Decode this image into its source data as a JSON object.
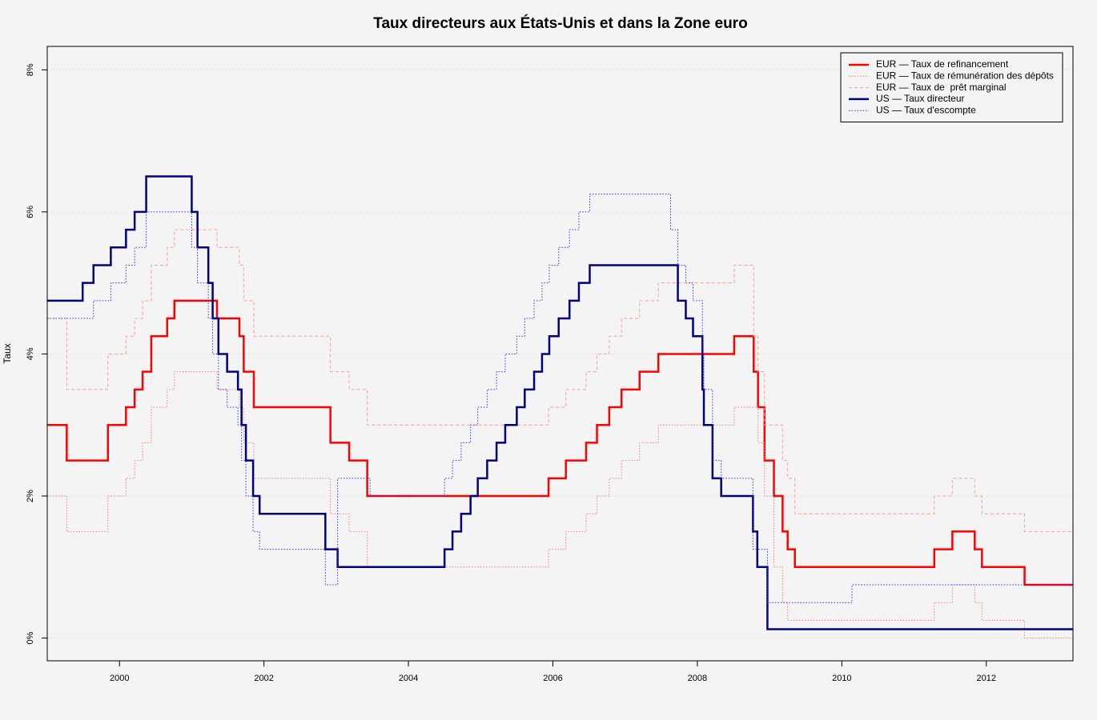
{
  "chart_data": {
    "type": "line",
    "step": "post",
    "title": "Taux directeurs aux États-Unis et dans la Zone euro",
    "ylabel": "Taux",
    "xlim": [
      1999.0,
      2013.2
    ],
    "ylim": [
      -0.32,
      8.33
    ],
    "xticks": [
      2000,
      2002,
      2004,
      2006,
      2008,
      2010,
      2012
    ],
    "yticks": [
      {
        "value": 0,
        "label": "0%"
      },
      {
        "value": 2,
        "label": "2%"
      },
      {
        "value": 4,
        "label": "4%"
      },
      {
        "value": 6,
        "label": "6%"
      },
      {
        "value": 8,
        "label": "8%"
      }
    ],
    "grid": "y",
    "legend": "topright",
    "series": [
      {
        "name": "EUR — Taux de refinancement",
        "color": "#ff0000",
        "linestyle": "solid",
        "linewidth": 2.5,
        "x": [
          1999.0,
          1999.27,
          1999.84,
          2000.09,
          2000.21,
          2000.32,
          2000.44,
          2000.66,
          2000.76,
          2001.35,
          2001.66,
          2001.72,
          2001.86,
          2002.92,
          2003.18,
          2003.43,
          2005.94,
          2006.18,
          2006.46,
          2006.61,
          2006.78,
          2006.95,
          2007.2,
          2007.46,
          2008.51,
          2008.78,
          2008.84,
          2008.93,
          2009.06,
          2009.18,
          2009.25,
          2009.35,
          2011.28,
          2011.53,
          2011.84,
          2011.94,
          2012.53,
          2013.2
        ],
        "values": [
          3.0,
          2.5,
          3.0,
          3.25,
          3.5,
          3.75,
          4.25,
          4.5,
          4.75,
          4.5,
          4.25,
          3.75,
          3.25,
          2.75,
          2.5,
          2.0,
          2.25,
          2.5,
          2.75,
          3.0,
          3.25,
          3.5,
          3.75,
          4.0,
          4.25,
          3.75,
          3.25,
          2.5,
          2.0,
          1.5,
          1.25,
          1.0,
          1.25,
          1.5,
          1.25,
          1.0,
          0.75,
          0.75
        ]
      },
      {
        "name": "EUR — Taux de rémunération des dépôts",
        "color": "#f08070",
        "linestyle": "dotted",
        "linewidth": 1,
        "x": [
          1999.0,
          1999.27,
          1999.84,
          2000.09,
          2000.21,
          2000.32,
          2000.44,
          2000.66,
          2000.76,
          2001.35,
          2001.66,
          2001.72,
          2001.86,
          2002.92,
          2003.18,
          2003.43,
          2005.94,
          2006.18,
          2006.46,
          2006.61,
          2006.78,
          2006.95,
          2007.2,
          2007.46,
          2008.51,
          2008.78,
          2008.84,
          2008.93,
          2009.06,
          2009.18,
          2009.25,
          2009.35,
          2011.28,
          2011.53,
          2011.84,
          2011.94,
          2012.53,
          2013.2
        ],
        "values": [
          2.0,
          1.5,
          2.0,
          2.25,
          2.5,
          2.75,
          3.25,
          3.5,
          3.75,
          3.5,
          3.25,
          2.75,
          2.25,
          1.75,
          1.5,
          1.0,
          1.25,
          1.5,
          1.75,
          2.0,
          2.25,
          2.5,
          2.75,
          3.0,
          3.25,
          3.25,
          2.75,
          2.0,
          1.0,
          0.5,
          0.25,
          0.25,
          0.5,
          0.75,
          0.5,
          0.25,
          0.0,
          0.0
        ]
      },
      {
        "name": "EUR — Taux de  prêt marginal",
        "color": "#f4a090",
        "linestyle": "dashed",
        "linewidth": 1,
        "x": [
          1999.0,
          1999.27,
          1999.84,
          2000.09,
          2000.21,
          2000.32,
          2000.44,
          2000.66,
          2000.76,
          2001.35,
          2001.66,
          2001.72,
          2001.86,
          2002.92,
          2003.18,
          2003.43,
          2005.94,
          2006.18,
          2006.46,
          2006.61,
          2006.78,
          2006.95,
          2007.2,
          2007.46,
          2008.51,
          2008.78,
          2008.84,
          2008.93,
          2009.06,
          2009.18,
          2009.25,
          2009.35,
          2011.28,
          2011.53,
          2011.84,
          2011.94,
          2012.53,
          2013.2
        ],
        "values": [
          4.5,
          3.5,
          4.0,
          4.25,
          4.5,
          4.75,
          5.25,
          5.5,
          5.75,
          5.5,
          5.25,
          4.75,
          4.25,
          3.75,
          3.5,
          3.0,
          3.25,
          3.5,
          3.75,
          4.0,
          4.25,
          4.5,
          4.75,
          5.0,
          5.25,
          4.25,
          3.75,
          3.0,
          3.0,
          2.5,
          2.25,
          1.75,
          2.0,
          2.25,
          2.0,
          1.75,
          1.5,
          1.5
        ]
      },
      {
        "name": "US — Taux directeur",
        "color": "#000080",
        "linestyle": "solid",
        "linewidth": 2.5,
        "x": [
          1999.0,
          1999.49,
          1999.64,
          1999.88,
          2000.09,
          2000.21,
          2000.37,
          2001.0,
          2001.08,
          2001.23,
          2001.29,
          2001.37,
          2001.49,
          2001.64,
          2001.69,
          2001.75,
          2001.85,
          2001.94,
          2002.85,
          2003.02,
          2004.5,
          2004.61,
          2004.73,
          2004.86,
          2004.96,
          2005.09,
          2005.22,
          2005.34,
          2005.5,
          2005.61,
          2005.74,
          2005.85,
          2005.95,
          2006.08,
          2006.23,
          2006.36,
          2006.51,
          2007.73,
          2007.84,
          2007.94,
          2008.07,
          2008.09,
          2008.21,
          2008.33,
          2008.77,
          2008.83,
          2008.97,
          2013.2
        ],
        "values": [
          4.75,
          5.0,
          5.25,
          5.5,
          5.75,
          6.0,
          6.5,
          6.0,
          5.5,
          5.0,
          4.5,
          4.0,
          3.75,
          3.5,
          3.0,
          2.5,
          2.0,
          1.75,
          1.25,
          1.0,
          1.25,
          1.5,
          1.75,
          2.0,
          2.25,
          2.5,
          2.75,
          3.0,
          3.25,
          3.5,
          3.75,
          4.0,
          4.25,
          4.5,
          4.75,
          5.0,
          5.25,
          4.75,
          4.5,
          4.25,
          3.5,
          3.0,
          2.25,
          2.0,
          1.5,
          1.0,
          0.125,
          0.125
        ]
      },
      {
        "name": "US — Taux d'escompte",
        "color": "#3030ff",
        "linestyle": "dotted",
        "linewidth": 1,
        "x": [
          1999.0,
          1999.64,
          1999.88,
          2000.09,
          2000.21,
          2000.37,
          2001.0,
          2001.08,
          2001.23,
          2001.29,
          2001.37,
          2001.49,
          2001.64,
          2001.69,
          2001.75,
          2001.85,
          2001.94,
          2002.85,
          2003.02,
          2003.47,
          2004.5,
          2004.61,
          2004.73,
          2004.86,
          2004.96,
          2005.09,
          2005.22,
          2005.34,
          2005.5,
          2005.61,
          2005.74,
          2005.85,
          2005.95,
          2006.08,
          2006.23,
          2006.36,
          2006.51,
          2007.63,
          2007.73,
          2007.84,
          2007.94,
          2008.07,
          2008.09,
          2008.21,
          2008.33,
          2008.77,
          2008.97,
          2010.14,
          2013.2
        ],
        "values": [
          4.5,
          4.75,
          5.0,
          5.25,
          5.5,
          6.0,
          5.5,
          5.0,
          4.5,
          4.0,
          3.5,
          3.25,
          3.0,
          2.5,
          2.0,
          1.5,
          1.25,
          0.75,
          2.25,
          2.0,
          2.25,
          2.5,
          2.75,
          3.0,
          3.25,
          3.5,
          3.75,
          4.0,
          4.25,
          4.5,
          4.75,
          5.0,
          5.25,
          5.5,
          5.75,
          6.0,
          6.25,
          5.75,
          5.25,
          5.0,
          4.75,
          4.0,
          3.5,
          2.5,
          2.25,
          1.25,
          0.5,
          0.75,
          0.75
        ]
      }
    ]
  }
}
